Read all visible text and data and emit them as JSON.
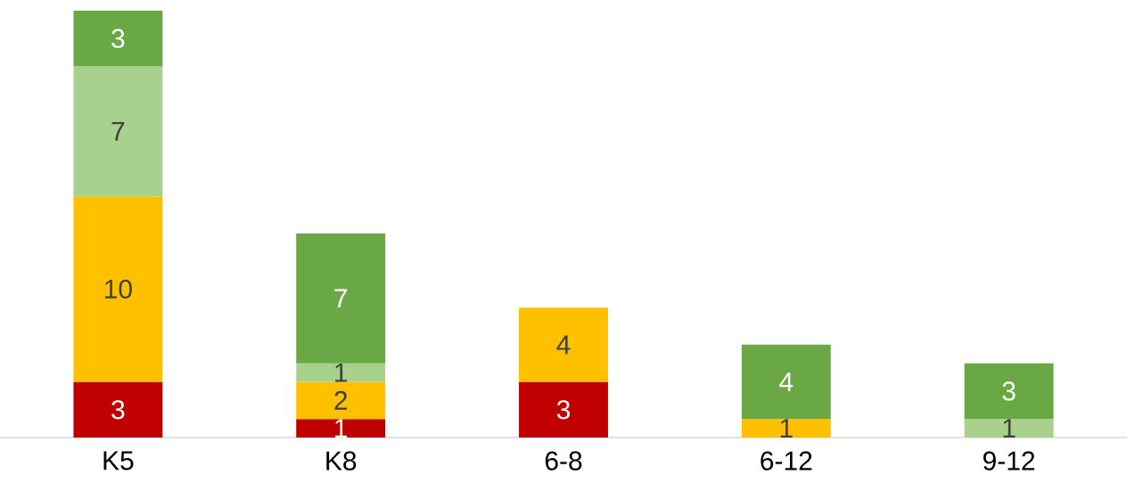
{
  "chart_data": {
    "type": "bar",
    "stacked": true,
    "data_labels": true,
    "categories": [
      "K5",
      "K8",
      "6-8",
      "6-12",
      "9-12"
    ],
    "series": [
      {
        "color": "#c00000",
        "values": [
          3,
          1,
          3,
          null,
          null
        ]
      },
      {
        "color": "#ffc000",
        "values": [
          10,
          2,
          4,
          1,
          null
        ]
      },
      {
        "color": "#a9d18e",
        "values": [
          7,
          1,
          null,
          null,
          1
        ]
      },
      {
        "color": "#6aa846",
        "values": [
          3,
          7,
          null,
          4,
          3
        ]
      }
    ]
  }
}
